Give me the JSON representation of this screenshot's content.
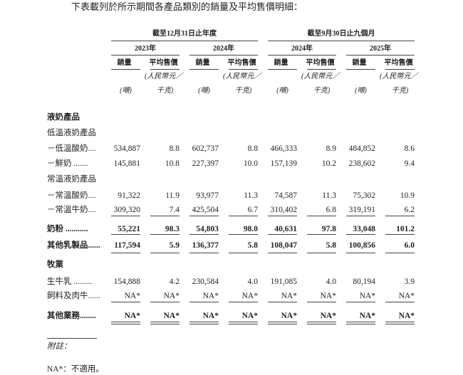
{
  "intro": "下表載列於所示期間各產品類別的銷量及平均售價明細：",
  "headers": {
    "period_annual": "截至12月31日止年度",
    "period_nine_months": "截至9月30日止九個月",
    "years": [
      "2023年",
      "2024年",
      "2024年",
      "2025年"
    ],
    "volume": "銷量",
    "avg_price": "平均售價",
    "price_unit_line1": "(人民幣元／",
    "price_unit_line2": "千克)",
    "volume_unit": "(噸)"
  },
  "rows": [
    {
      "label": "液奶產品",
      "type": "section"
    },
    {
      "label": "低溫液奶產品",
      "type": "subsection"
    },
    {
      "label": "－低溫酸奶....",
      "type": "item",
      "values": [
        "534,887",
        "8.8",
        "602,737",
        "8.8",
        "466,333",
        "8.9",
        "484,852",
        "8.6"
      ]
    },
    {
      "label": "－鮮奶 .......",
      "type": "item",
      "values": [
        "145,881",
        "10.8",
        "227,397",
        "10.0",
        "157,139",
        "10.2",
        "238,602",
        "9.4"
      ]
    },
    {
      "label": "常溫液奶產品",
      "type": "subsection"
    },
    {
      "label": "－常溫酸奶....",
      "type": "item",
      "values": [
        "91,322",
        "11.9",
        "93,977",
        "11.3",
        "74,587",
        "11.3",
        "75,302",
        "10.9"
      ]
    },
    {
      "label": "－常溫牛奶....",
      "type": "item",
      "values": [
        "309,320",
        "7.4",
        "425,504",
        "6.7",
        "310,402",
        "6.8",
        "319,191",
        "6.2"
      ]
    },
    {
      "label": "奶粉 ...........",
      "type": "total",
      "values": [
        "55,221",
        "98.3",
        "54,803",
        "98.0",
        "40,631",
        "97.8",
        "33,048",
        "101.2"
      ]
    },
    {
      "label": "其他乳製品......",
      "type": "total",
      "values": [
        "117,594",
        "5.9",
        "136,377",
        "5.8",
        "108,047",
        "5.8",
        "100,856",
        "6.0"
      ]
    },
    {
      "label": "牧業",
      "type": "section"
    },
    {
      "label": "生牛乳 .........",
      "type": "item",
      "values": [
        "154,888",
        "4.2",
        "230,584",
        "4.0",
        "191,085",
        "4.0",
        "80,194",
        "3.9"
      ]
    },
    {
      "label": "飼料及肉牛......",
      "type": "item",
      "values": [
        "NA*",
        "NA*",
        "NA*",
        "NA*",
        "NA*",
        "NA*",
        "NA*",
        "NA*"
      ]
    },
    {
      "label": "其他業務........",
      "type": "total",
      "values": [
        "NA*",
        "NA*",
        "NA*",
        "NA*",
        "NA*",
        "NA*",
        "NA*",
        "NA*"
      ]
    }
  ],
  "notes": {
    "heading": "附註：",
    "na_note": "NA*：不適用。"
  }
}
